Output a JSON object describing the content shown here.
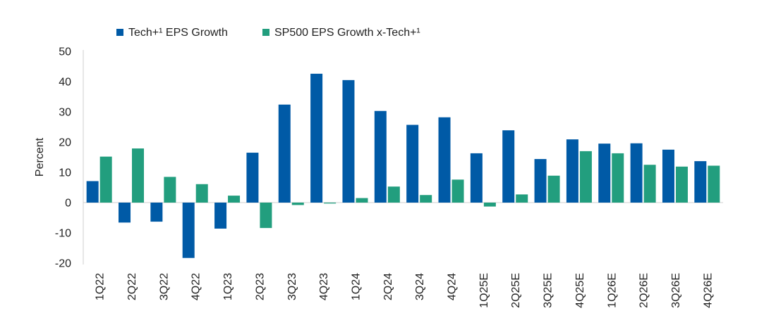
{
  "chart_data": {
    "type": "bar",
    "title": "",
    "xlabel": "",
    "ylabel": "Percent",
    "ylim": [
      -20,
      50
    ],
    "yticks": [
      50,
      40,
      30,
      20,
      10,
      0,
      -10,
      -20
    ],
    "grid": false,
    "legend_position": "top-left",
    "categories": [
      "1Q22",
      "2Q22",
      "3Q22",
      "4Q22",
      "1Q23",
      "2Q23",
      "3Q23",
      "4Q23",
      "1Q24",
      "2Q24",
      "3Q24",
      "4Q24",
      "1Q25E",
      "2Q25E",
      "3Q25E",
      "4Q25E",
      "1Q26E",
      "2Q26E",
      "3Q26E",
      "4Q26E"
    ],
    "series": [
      {
        "name": "Tech+¹ EPS Growth",
        "color": "#005aa6",
        "values": [
          7.1,
          -6.6,
          -6.3,
          -18.3,
          -8.6,
          16.5,
          32.4,
          42.6,
          40.5,
          30.3,
          25.7,
          28.2,
          16.3,
          23.9,
          14.4,
          20.9,
          19.5,
          19.6,
          17.5,
          13.7
        ]
      },
      {
        "name": "SP500 EPS Growth x-Tech+¹",
        "color": "#229e7e",
        "values": [
          15.2,
          17.9,
          8.5,
          6.1,
          2.3,
          -8.4,
          -0.8,
          -0.3,
          1.5,
          5.3,
          2.5,
          7.6,
          -1.3,
          2.7,
          8.9,
          17.0,
          16.3,
          12.5,
          11.9,
          12.2
        ]
      }
    ]
  }
}
